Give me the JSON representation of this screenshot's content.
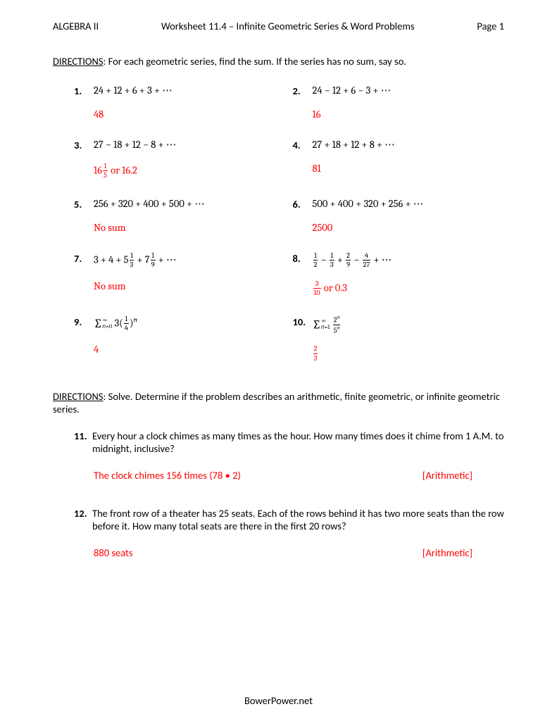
{
  "header": {
    "left": "ALGEBRA II",
    "center": "Worksheet 11.4 – Infinite Geometric Series & Word Problems",
    "right": "Page 1"
  },
  "directions1_label": "DIRECTIONS",
  "directions1_text": ": For each geometric series, find the sum.  If the series has no sum, say so.",
  "problems": {
    "p1": {
      "num": "1.",
      "expr": "24 + 12 + 6 + 3 + ⋯",
      "answer": "48"
    },
    "p2": {
      "num": "2.",
      "expr": "24 − 12 + 6 − 3 + ⋯",
      "answer": "16"
    },
    "p3": {
      "num": "3.",
      "expr": "27 − 18 + 12 − 8 + ⋯",
      "answer_prefix": "16",
      "answer_frac_num": "1",
      "answer_frac_den": "5",
      "answer_suffix": " or 16.2"
    },
    "p4": {
      "num": "4.",
      "expr": "27 + 18 + 12 + 8 + ⋯",
      "answer": "81"
    },
    "p5": {
      "num": "5.",
      "expr": "256 + 320 + 400 + 500 + ⋯",
      "answer": "No sum"
    },
    "p6": {
      "num": "6.",
      "expr": "500 + 400 + 320 + 256 + ⋯",
      "answer": "2500"
    },
    "p7": {
      "num": "7.",
      "answer": "No sum"
    },
    "p8": {
      "num": "8.",
      "answer_frac_num": "3",
      "answer_frac_den": "10",
      "answer_suffix": " or 0.3"
    },
    "p9": {
      "num": "9.",
      "answer": "4"
    },
    "p10": {
      "num": "10.",
      "answer_frac_num": "2",
      "answer_frac_den": "3"
    }
  },
  "p7_parts": {
    "a": "3 + 4 + 5",
    "f1n": "1",
    "f1d": "3",
    "b": " + 7",
    "f2n": "1",
    "f2d": "9",
    "c": " + ⋯"
  },
  "p8_parts": {
    "f1n": "1",
    "f1d": "2",
    "f2n": "1",
    "f2d": "3",
    "f3n": "2",
    "f3d": "9",
    "f4n": "4",
    "f4d": "27",
    "tail": " + ⋯"
  },
  "p9_parts": {
    "upper": "∞",
    "lower": "𝑛=0",
    "coef": " 3(",
    "fn": "1",
    "fd": "4",
    "close": ")",
    "exp": "𝑛"
  },
  "p10_parts": {
    "upper": "∞",
    "lower": "𝑛=1",
    "fn_num": "2",
    "fn_num_exp": "𝑛",
    "fn_den": "5",
    "fn_den_exp": "𝑛"
  },
  "directions2_label": "DIRECTIONS",
  "directions2_text": ": Solve.  Determine if the problem describes an arithmetic, finite geometric, or infinite geometric series.",
  "wp11": {
    "num": "11.",
    "text": "Every hour a clock chimes as many times as the hour. How many times does it chime from 1 A.M. to midnight, inclusive?",
    "answer": "The clock chimes 156 times (78 • 2)",
    "type": "[Arithmetic]"
  },
  "wp12": {
    "num": "12.",
    "text": "The front row of a theater has 25 seats.  Each of the rows behind it has two more seats than the row before it.  How many total seats are there in the first 20 rows?",
    "answer": "880 seats",
    "type": "[Arithmetic]"
  },
  "footer": "BowerPower.net",
  "colors": {
    "answer": "#ff0000",
    "text": "#000000",
    "background": "#ffffff"
  }
}
